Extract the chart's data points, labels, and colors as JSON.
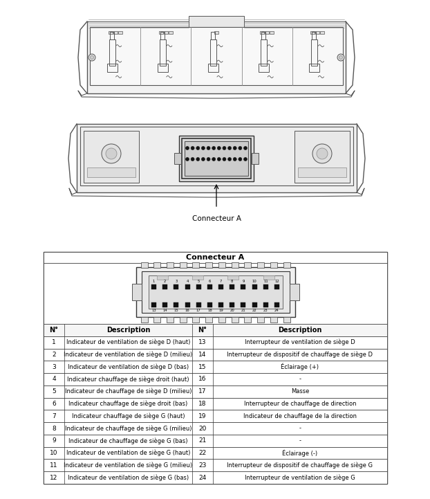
{
  "background_color": "#ffffff",
  "table_title": "Connecteur A",
  "connector_label": "Connecteur A",
  "rows": [
    [
      1,
      "Indicateur de ventilation de siège D (haut)",
      13,
      "Interrupteur de ventilation de siège D"
    ],
    [
      2,
      "Indicateur de ventilation de siège D (milieu)",
      14,
      "Interrupteur de dispositif de chauffage de siège D"
    ],
    [
      3,
      "Indicateur de ventilation de siège D (bas)",
      15,
      "Éclairage (+)"
    ],
    [
      4,
      "Indicateur chauffage de siège droit (haut)",
      16,
      "-"
    ],
    [
      5,
      "Indicateur de chauffage de siège D (milieu)",
      17,
      "Masse"
    ],
    [
      6,
      "Indicateur chauffage de siège droit (bas)",
      18,
      "Interrupteur de chauffage de direction"
    ],
    [
      7,
      "Indicateur chauffage de siège G (haut)",
      19,
      "Indicateur de chauffage de la direction"
    ],
    [
      8,
      "Indicateur de chauffage de siège G (milieu)",
      20,
      "-"
    ],
    [
      9,
      "Indicateur de chauffage de siège G (bas)",
      21,
      "-"
    ],
    [
      10,
      "Indicateur de ventilation de siège G (haut)",
      22,
      "Éclairage (-)"
    ],
    [
      11,
      "Indicateur de ventilation de siège G (milieu)",
      23,
      "Interrupteur de dispositif de chauffage de siège G"
    ],
    [
      12,
      "Indicateur de ventilation de siège G (bas)",
      24,
      "Interrupteur de ventilation de siège G"
    ]
  ],
  "centered_right": [
    "-",
    "Masse",
    "Éclairage (+)",
    "Éclairage (-)"
  ]
}
